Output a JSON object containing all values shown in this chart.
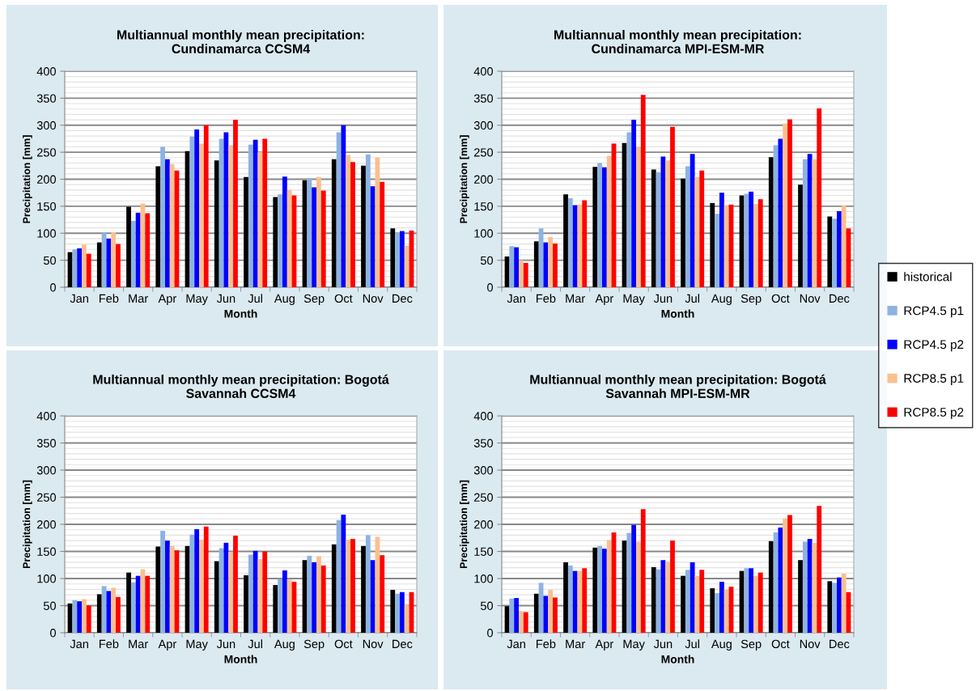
{
  "chart_data": [
    {
      "type": "bar",
      "title": "Multiannual monthly mean precipitation:\nCundinamarca CCSM4",
      "xlabel": "Month",
      "ylabel": "Precipitation [mm]",
      "categories": [
        "Jan",
        "Feb",
        "Mar",
        "Apr",
        "May",
        "Jun",
        "Jul",
        "Aug",
        "Sep",
        "Oct",
        "Nov",
        "Dec"
      ],
      "ylim": [
        0,
        400
      ],
      "yticks": [
        0,
        50,
        100,
        150,
        200,
        250,
        300,
        350,
        400
      ],
      "grid": "y",
      "legend": "right",
      "series": [
        {
          "name": "historical",
          "color": "#000000",
          "values": [
            65,
            83,
            149,
            224,
            252,
            235,
            204,
            167,
            198,
            237,
            225,
            109
          ]
        },
        {
          "name": "RCP4.5 p1",
          "color": "#8db3e2",
          "values": [
            70,
            102,
            123,
            260,
            279,
            275,
            264,
            172,
            202,
            287,
            246,
            101
          ]
        },
        {
          "name": "RCP4.5 p2",
          "color": "#0000ff",
          "values": [
            72,
            90,
            138,
            237,
            292,
            287,
            273,
            205,
            185,
            300,
            187,
            104
          ]
        },
        {
          "name": "RCP8.5 p1",
          "color": "#fac090",
          "values": [
            79,
            102,
            155,
            228,
            266,
            263,
            250,
            180,
            204,
            245,
            240,
            77
          ]
        },
        {
          "name": "RCP8.5 p2",
          "color": "#ff0000",
          "values": [
            62,
            80,
            137,
            216,
            300,
            310,
            275,
            170,
            179,
            232,
            195,
            105
          ]
        }
      ]
    },
    {
      "type": "bar",
      "title": "Multiannual monthly mean precipitation:\nCundinamarca MPI-ESM-MR",
      "xlabel": "Month",
      "ylabel": "Precipitation [mm]",
      "categories": [
        "Jan",
        "Feb",
        "Mar",
        "Apr",
        "May",
        "Jun",
        "Jul",
        "Aug",
        "Sep",
        "Oct",
        "Nov",
        "Dec"
      ],
      "ylim": [
        0,
        400
      ],
      "yticks": [
        0,
        50,
        100,
        150,
        200,
        250,
        300,
        350,
        400
      ],
      "grid": "y",
      "series": [
        {
          "color": "#000000",
          "values": [
            57,
            85,
            172,
            223,
            267,
            218,
            201,
            156,
            170,
            241,
            190,
            131
          ]
        },
        {
          "color": "#8db3e2",
          "values": [
            76,
            109,
            165,
            230,
            287,
            213,
            224,
            136,
            173,
            263,
            237,
            127
          ]
        },
        {
          "color": "#0000ff",
          "values": [
            74,
            83,
            152,
            222,
            310,
            242,
            247,
            175,
            177,
            275,
            247,
            141
          ]
        },
        {
          "color": "#fac090",
          "values": [
            50,
            93,
            153,
            243,
            260,
            235,
            204,
            152,
            154,
            303,
            237,
            152
          ]
        },
        {
          "color": "#ff0000",
          "values": [
            45,
            81,
            161,
            266,
            356,
            297,
            216,
            153,
            163,
            311,
            331,
            109
          ]
        }
      ]
    },
    {
      "type": "bar",
      "title": "Multiannual monthly mean precipitation: Bogotá\nSavannah CCSM4",
      "xlabel": "Month",
      "ylabel": "Precipitation [mm]",
      "categories": [
        "Jan",
        "Feb",
        "Mar",
        "Apr",
        "May",
        "Jun",
        "Jul",
        "Aug",
        "Sep",
        "Oct",
        "Nov",
        "Dec"
      ],
      "ylim": [
        0,
        400
      ],
      "yticks": [
        0,
        50,
        100,
        150,
        200,
        250,
        300,
        350,
        400
      ],
      "grid": "y",
      "series": [
        {
          "color": "#000000",
          "values": [
            54,
            71,
            111,
            159,
            160,
            132,
            106,
            88,
            134,
            163,
            160,
            79
          ]
        },
        {
          "color": "#8db3e2",
          "values": [
            60,
            86,
            93,
            188,
            181,
            156,
            144,
            99,
            142,
            208,
            180,
            72
          ]
        },
        {
          "color": "#0000ff",
          "values": [
            58,
            77,
            105,
            170,
            191,
            166,
            151,
            115,
            130,
            218,
            134,
            75
          ]
        },
        {
          "color": "#fac090",
          "values": [
            62,
            83,
            117,
            160,
            172,
            149,
            136,
            98,
            141,
            172,
            177,
            53
          ]
        },
        {
          "color": "#ff0000",
          "values": [
            50,
            66,
            105,
            152,
            196,
            179,
            150,
            94,
            124,
            173,
            143,
            75
          ]
        }
      ]
    },
    {
      "type": "bar",
      "title": "Multiannual monthly mean precipitation: Bogotá\nSavannah MPI-ESM-MR",
      "xlabel": "Month",
      "ylabel": "Precipitation [mm]",
      "categories": [
        "Jan",
        "Feb",
        "Mar",
        "Apr",
        "May",
        "Jun",
        "Jul",
        "Aug",
        "Sep",
        "Oct",
        "Nov",
        "Dec"
      ],
      "ylim": [
        0,
        400
      ],
      "yticks": [
        0,
        50,
        100,
        150,
        200,
        250,
        300,
        350,
        400
      ],
      "grid": "y",
      "series": [
        {
          "color": "#000000",
          "values": [
            49,
            72,
            130,
            157,
            170,
            121,
            105,
            82,
            114,
            169,
            134,
            95
          ]
        },
        {
          "color": "#8db3e2",
          "values": [
            63,
            92,
            124,
            160,
            184,
            117,
            116,
            73,
            119,
            185,
            168,
            92
          ]
        },
        {
          "color": "#0000ff",
          "values": [
            64,
            68,
            114,
            155,
            199,
            134,
            130,
            94,
            119,
            194,
            173,
            102
          ]
        },
        {
          "color": "#fac090",
          "values": [
            40,
            79,
            114,
            171,
            168,
            131,
            105,
            80,
            105,
            211,
            166,
            109
          ]
        },
        {
          "color": "#ff0000",
          "values": [
            38,
            65,
            119,
            185,
            228,
            170,
            116,
            85,
            111,
            217,
            234,
            75
          ]
        }
      ]
    }
  ]
}
